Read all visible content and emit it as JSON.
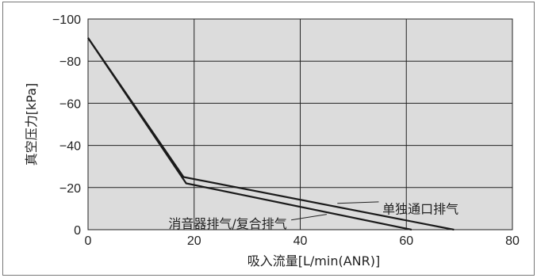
{
  "chart_data": {
    "type": "line",
    "title": "",
    "xlabel": "吸入流量[L/min(ANR)]",
    "ylabel": "真空压力[kPa]",
    "xlim": [
      0,
      80
    ],
    "ylim": [
      0,
      -100
    ],
    "x_ticks": [
      "0",
      "20",
      "40",
      "60",
      "80"
    ],
    "y_ticks": [
      "0",
      "−20",
      "−40",
      "−60",
      "−80",
      "−100"
    ],
    "grid": true,
    "colors": {
      "plot_background": "#dcdcdc",
      "line": "#1a1a1a",
      "grid": "#222222"
    },
    "series": [
      {
        "name": "单独通口排气",
        "points": [
          [
            0,
            -91
          ],
          [
            18,
            -25
          ],
          [
            69,
            0
          ]
        ]
      },
      {
        "name": "消音器排气/复合排气",
        "points": [
          [
            0,
            -91
          ],
          [
            18.5,
            -22
          ],
          [
            61,
            0
          ]
        ]
      }
    ],
    "annotations": [
      {
        "text": "单独通口排气",
        "series": 0
      },
      {
        "text": "消音器排气/复合排气",
        "series": 1
      }
    ]
  }
}
